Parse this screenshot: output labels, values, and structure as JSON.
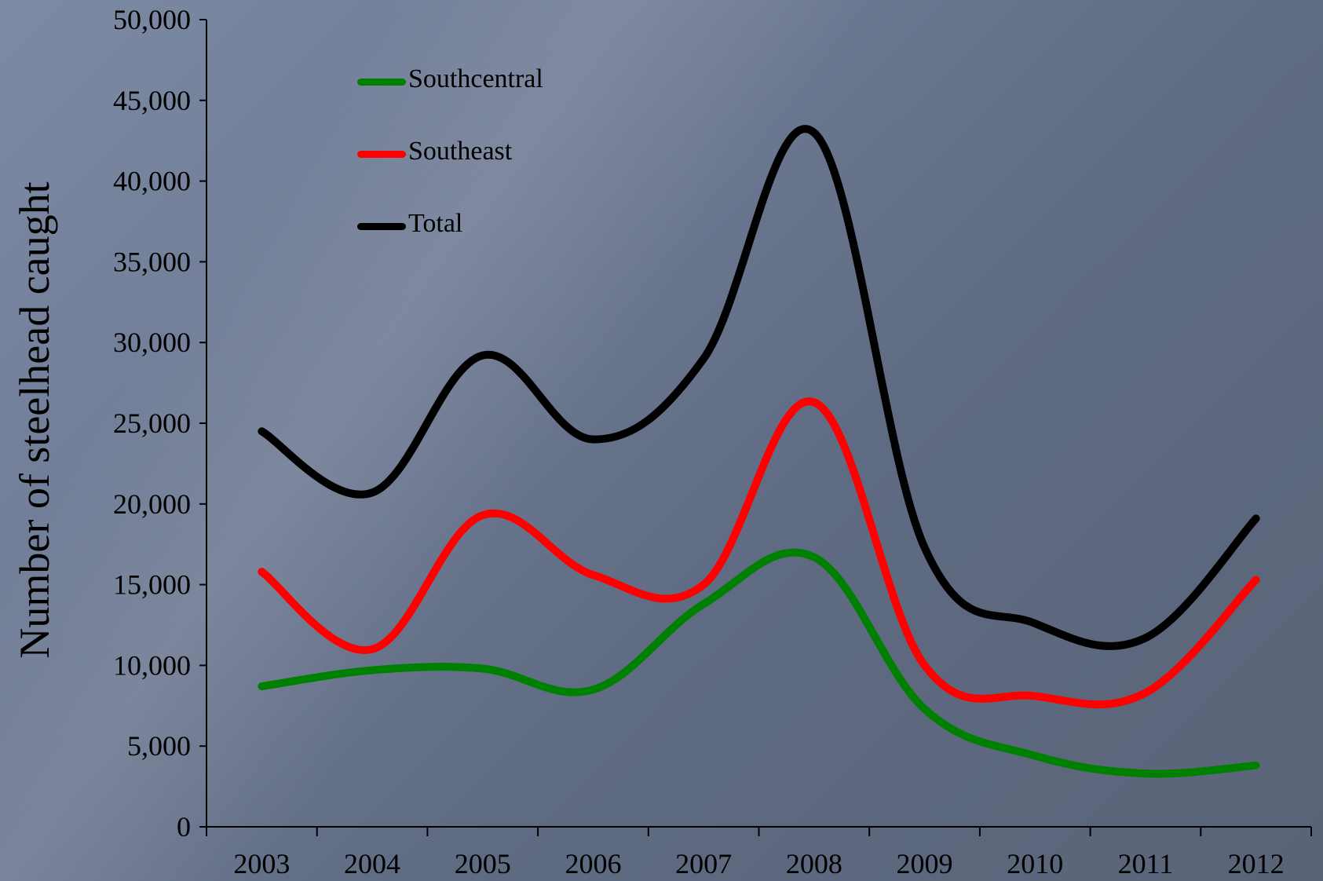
{
  "chart_data": {
    "type": "line",
    "title": "",
    "xlabel": "",
    "ylabel": "Number of steelhead caught",
    "categories": [
      "2003",
      "2004",
      "2005",
      "2006",
      "2007",
      "2008",
      "2009",
      "2010",
      "2011",
      "2012"
    ],
    "ylim": [
      0,
      50000
    ],
    "yticks": [
      0,
      5000,
      10000,
      15000,
      20000,
      25000,
      30000,
      35000,
      40000,
      45000,
      50000
    ],
    "ytick_labels": [
      "0",
      "5,000",
      "10,000",
      "15,000",
      "20,000",
      "25,000",
      "30,000",
      "35,000",
      "40,000",
      "45,000",
      "50,000"
    ],
    "grid": false,
    "legend_position": "top-left",
    "smooth": true,
    "series": [
      {
        "name": "Southcentral",
        "color": "#008000",
        "values": [
          8700,
          9700,
          9800,
          8500,
          13800,
          16700,
          7300,
          4400,
          3300,
          3800
        ]
      },
      {
        "name": "Southeast",
        "color": "#ff0000",
        "values": [
          15800,
          11000,
          19300,
          15600,
          15000,
          26300,
          10000,
          8100,
          8300,
          15300
        ]
      },
      {
        "name": "Total",
        "color": "#000000",
        "values": [
          24500,
          20700,
          29200,
          24000,
          29000,
          43000,
          17300,
          12600,
          11700,
          19100
        ]
      }
    ]
  }
}
